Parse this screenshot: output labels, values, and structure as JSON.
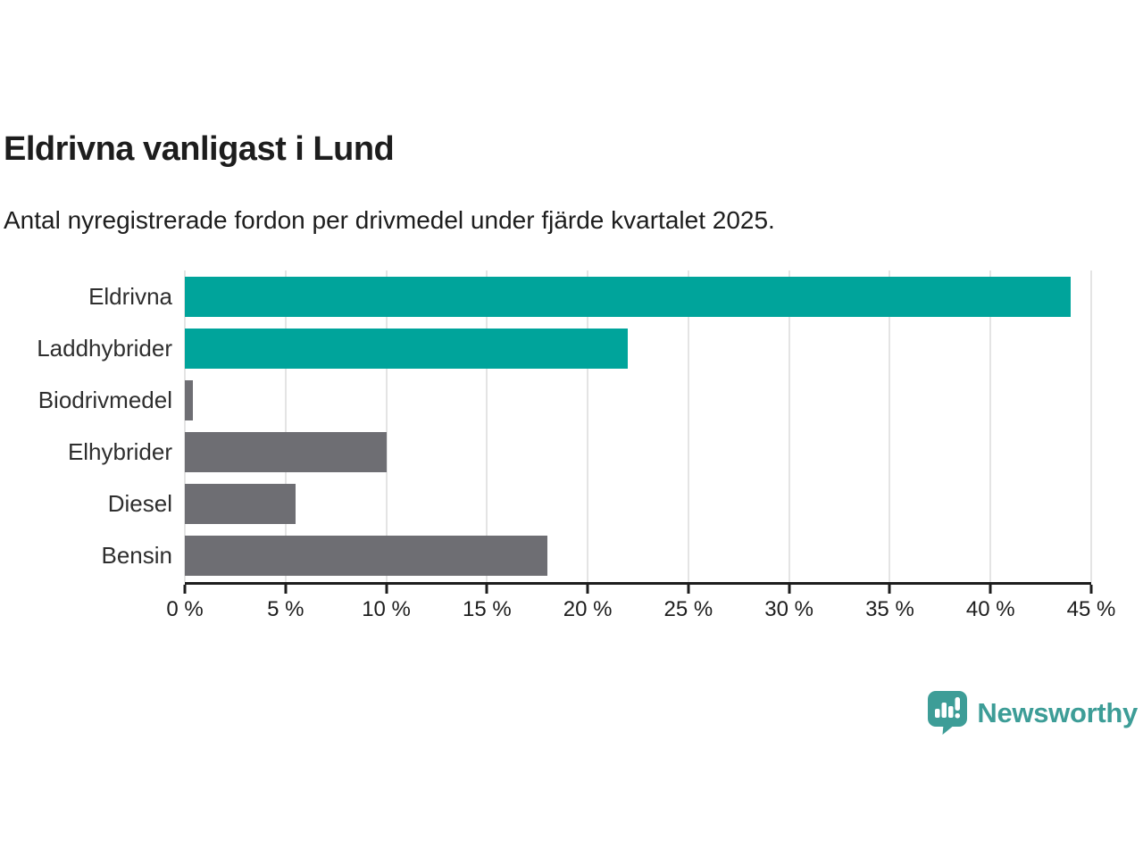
{
  "title": "Eldrivna vanligast i Lund",
  "subtitle": "Antal nyregistrerade fordon per drivmedel under fjärde kvartalet 2025.",
  "chart_data": {
    "type": "bar",
    "orientation": "horizontal",
    "title": "Eldrivna vanligast i Lund",
    "subtitle": "Antal nyregistrerade fordon per drivmedel under fjärde kvartalet 2025.",
    "categories": [
      "Eldrivna",
      "Laddhybrider",
      "Biodrivmedel",
      "Elhybrider",
      "Diesel",
      "Bensin"
    ],
    "values": [
      44,
      22,
      0.4,
      10,
      5.5,
      18
    ],
    "unit": "%",
    "bar_colors": [
      "#00a49b",
      "#00a49b",
      "#6e6e73",
      "#6e6e73",
      "#6e6e73",
      "#6e6e73"
    ],
    "xlim": [
      0,
      45
    ],
    "x_tick_values": [
      0,
      5,
      10,
      15,
      20,
      25,
      30,
      35,
      40,
      45
    ],
    "x_ticks": [
      "0 %",
      "5 %",
      "10 %",
      "15 %",
      "20 %",
      "25 %",
      "30 %",
      "35 %",
      "40 %",
      "45 %"
    ],
    "grid": true,
    "legend": false
  },
  "colors": {
    "accent_teal": "#00a49b",
    "bar_gray": "#6e6e73",
    "grid": "#e4e4e4",
    "axis": "#1d1d1d",
    "text": "#1d1d1d",
    "logo_teal": "#3d9d97"
  },
  "branding": {
    "logo_text": "Newsworthy",
    "logo_icon": "bar-chart-speech-bubble-icon"
  }
}
